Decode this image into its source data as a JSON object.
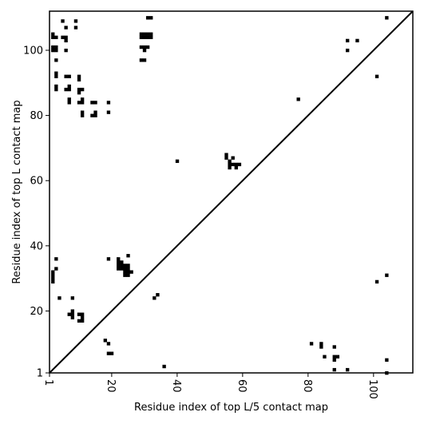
{
  "chart_data": {
    "type": "scatter",
    "title": "",
    "xlabel": "Residue index of top L/5 contact map",
    "ylabel": "Residue index of top L contact map",
    "xlim": [
      1,
      112
    ],
    "ylim": [
      1,
      112
    ],
    "xticks": [
      1,
      20,
      40,
      60,
      80,
      100
    ],
    "xtick_labels": [
      "1",
      "20",
      "40",
      "60",
      "80",
      "100"
    ],
    "yticks": [
      1,
      20,
      40,
      60,
      80,
      100
    ],
    "ytick_labels": [
      "1",
      "20",
      "40",
      "60",
      "80",
      "100"
    ],
    "grid": false,
    "diagonal": true,
    "marker": "square",
    "color": "#000000",
    "series": [
      {
        "points": [
          [
            2,
            105
          ],
          [
            2,
            104
          ],
          [
            3,
            104
          ],
          [
            2,
            101
          ],
          [
            3,
            101
          ],
          [
            2,
            100
          ],
          [
            3,
            100
          ],
          [
            3,
            97
          ],
          [
            3,
            93
          ],
          [
            3,
            92
          ],
          [
            3,
            89
          ],
          [
            3,
            88
          ],
          [
            5,
            109
          ],
          [
            5,
            104
          ],
          [
            6,
            104
          ],
          [
            6,
            103
          ],
          [
            6,
            107
          ],
          [
            6,
            100
          ],
          [
            6,
            92
          ],
          [
            7,
            92
          ],
          [
            6,
            88
          ],
          [
            7,
            88
          ],
          [
            7,
            89
          ],
          [
            7,
            85
          ],
          [
            7,
            84
          ],
          [
            9,
            109
          ],
          [
            9,
            107
          ],
          [
            10,
            92
          ],
          [
            10,
            91
          ],
          [
            10,
            88
          ],
          [
            11,
            88
          ],
          [
            10,
            87
          ],
          [
            10,
            84
          ],
          [
            11,
            84
          ],
          [
            11,
            85
          ],
          [
            11,
            81
          ],
          [
            11,
            80
          ],
          [
            14,
            84
          ],
          [
            15,
            84
          ],
          [
            14,
            80
          ],
          [
            15,
            80
          ],
          [
            15,
            81
          ],
          [
            19,
            84
          ],
          [
            19,
            81
          ],
          [
            29,
            105
          ],
          [
            30,
            105
          ],
          [
            31,
            105
          ],
          [
            32,
            105
          ],
          [
            29,
            104
          ],
          [
            30,
            104
          ],
          [
            31,
            104
          ],
          [
            32,
            104
          ],
          [
            29,
            101
          ],
          [
            30,
            101
          ],
          [
            31,
            101
          ],
          [
            30,
            100
          ],
          [
            29,
            97
          ],
          [
            30,
            97
          ],
          [
            31,
            110
          ],
          [
            32,
            110
          ],
          [
            40,
            66
          ],
          [
            55,
            68
          ],
          [
            55,
            67
          ],
          [
            56,
            66
          ],
          [
            57,
            67
          ],
          [
            56,
            65
          ],
          [
            57,
            65
          ],
          [
            58,
            65
          ],
          [
            59,
            65
          ],
          [
            56,
            64
          ],
          [
            58,
            64
          ],
          [
            77,
            85
          ],
          [
            92,
            103
          ],
          [
            95,
            103
          ],
          [
            92,
            100
          ],
          [
            101,
            92
          ],
          [
            104,
            110
          ],
          [
            3,
            36
          ],
          [
            3,
            33
          ],
          [
            2,
            32
          ],
          [
            2,
            31
          ],
          [
            2,
            30
          ],
          [
            2,
            29
          ],
          [
            4,
            24
          ],
          [
            8,
            24
          ],
          [
            7,
            19
          ],
          [
            8,
            19
          ],
          [
            8,
            20
          ],
          [
            8,
            18
          ],
          [
            10,
            19
          ],
          [
            11,
            19
          ],
          [
            11,
            18
          ],
          [
            10,
            17
          ],
          [
            11,
            17
          ],
          [
            18,
            11
          ],
          [
            19,
            10
          ],
          [
            19,
            7
          ],
          [
            20,
            7
          ],
          [
            19,
            36
          ],
          [
            22,
            36
          ],
          [
            23,
            35
          ],
          [
            22,
            35
          ],
          [
            24,
            34
          ],
          [
            25,
            34
          ],
          [
            22,
            34
          ],
          [
            23,
            34
          ],
          [
            22,
            33
          ],
          [
            23,
            33
          ],
          [
            24,
            33
          ],
          [
            25,
            33
          ],
          [
            24,
            32
          ],
          [
            25,
            32
          ],
          [
            26,
            32
          ],
          [
            24,
            31
          ],
          [
            25,
            31
          ],
          [
            25,
            37
          ],
          [
            33,
            24
          ],
          [
            34,
            25
          ],
          [
            36,
            3
          ],
          [
            81,
            10
          ],
          [
            84,
            10
          ],
          [
            84,
            9
          ],
          [
            88,
            9
          ],
          [
            85,
            6
          ],
          [
            88,
            6
          ],
          [
            89,
            6
          ],
          [
            88,
            5
          ],
          [
            88,
            2
          ],
          [
            92,
            2
          ],
          [
            101,
            29
          ],
          [
            104,
            31
          ],
          [
            104,
            5
          ],
          [
            104,
            1
          ]
        ]
      }
    ]
  }
}
